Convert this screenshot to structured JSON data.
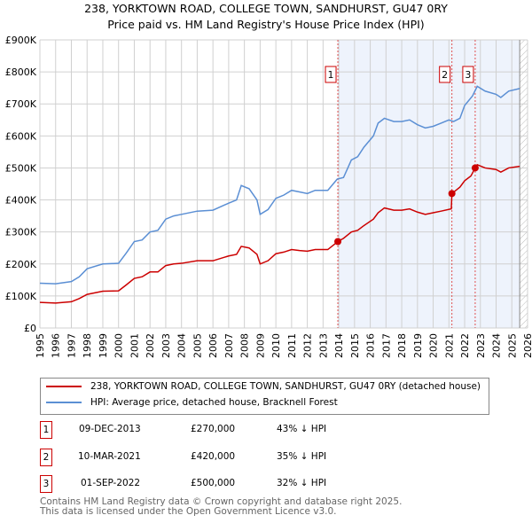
{
  "title": "238, YORKTOWN ROAD, COLLEGE TOWN, SANDHURST, GU47 0RY",
  "subtitle": "Price paid vs. HM Land Registry's House Price Index (HPI)",
  "chart_data": {
    "type": "line",
    "xlim": [
      1995,
      2026
    ],
    "ylim": [
      0,
      900000
    ],
    "x_ticks": [
      "1995",
      "1996",
      "1997",
      "1998",
      "1999",
      "2000",
      "2001",
      "2002",
      "2003",
      "2004",
      "2005",
      "2006",
      "2007",
      "2008",
      "2009",
      "2010",
      "2011",
      "2012",
      "2013",
      "2014",
      "2015",
      "2016",
      "2017",
      "2018",
      "2019",
      "2020",
      "2021",
      "2022",
      "2023",
      "2024",
      "2025",
      "2026"
    ],
    "y_ticks": [
      {
        "v": 0,
        "label": "£0"
      },
      {
        "v": 100000,
        "label": "£100K"
      },
      {
        "v": 200000,
        "label": "£200K"
      },
      {
        "v": 300000,
        "label": "£300K"
      },
      {
        "v": 400000,
        "label": "£400K"
      },
      {
        "v": 500000,
        "label": "£500K"
      },
      {
        "v": 600000,
        "label": "£600K"
      },
      {
        "v": 700000,
        "label": "£700K"
      },
      {
        "v": 800000,
        "label": "£800K"
      },
      {
        "v": 900000,
        "label": "£900K"
      }
    ],
    "grid": true,
    "shaded_from": 2013.94,
    "hatched_from": 2025.5,
    "series": [
      {
        "name": "238, YORKTOWN ROAD, COLLEGE TOWN, SANDHURST, GU47 0RY (detached house)",
        "color": "#cc0000",
        "x": [
          1995,
          1996,
          1997,
          1997.5,
          1998,
          1999,
          2000,
          2000.5,
          2001,
          2001.5,
          2002,
          2002.5,
          2003,
          2003.5,
          2004,
          2005,
          2006,
          2007,
          2007.5,
          2007.8,
          2008.3,
          2008.8,
          2009,
          2009.5,
          2010,
          2010.5,
          2011,
          2011.5,
          2012,
          2012.5,
          2013.3,
          2013.94,
          2014.3,
          2014.8,
          2015.2,
          2015.6,
          2016.2,
          2016.5,
          2016.9,
          2017.5,
          2018,
          2018.5,
          2019,
          2019.5,
          2020,
          2020.5,
          2021.15,
          2021.19,
          2021.7,
          2022,
          2022.4,
          2022.67,
          2022.8,
          2023.3,
          2024,
          2024.3,
          2024.8,
          2025.5
        ],
        "y": [
          80000,
          78000,
          82000,
          92000,
          105000,
          115000,
          116000,
          135000,
          155000,
          160000,
          175000,
          175000,
          195000,
          200000,
          202000,
          210000,
          210000,
          225000,
          230000,
          255000,
          250000,
          230000,
          200000,
          210000,
          232000,
          237000,
          245000,
          242000,
          240000,
          245000,
          245000,
          270000,
          280000,
          300000,
          305000,
          320000,
          340000,
          360000,
          375000,
          368000,
          368000,
          372000,
          362000,
          355000,
          360000,
          365000,
          372000,
          420000,
          440000,
          460000,
          475000,
          500000,
          510000,
          500000,
          495000,
          487000,
          500000,
          505000
        ]
      },
      {
        "name": "HPI: Average price, detached house, Bracknell Forest",
        "color": "#5b8fd4",
        "x": [
          1995,
          1996,
          1997,
          1997.5,
          1998,
          1999,
          2000,
          2000.5,
          2001,
          2001.5,
          2002,
          2002.5,
          2003,
          2003.5,
          2004,
          2005,
          2006,
          2007,
          2007.5,
          2007.8,
          2008.3,
          2008.8,
          2009,
          2009.5,
          2010,
          2010.5,
          2011,
          2011.5,
          2012,
          2012.5,
          2013.3,
          2013.9,
          2014.3,
          2014.8,
          2015.2,
          2015.6,
          2016.2,
          2016.5,
          2016.9,
          2017.5,
          2018,
          2018.5,
          2019,
          2019.5,
          2020,
          2020.5,
          2021,
          2021.3,
          2021.7,
          2022,
          2022.5,
          2022.8,
          2023.3,
          2024,
          2024.3,
          2024.8,
          2025.5
        ],
        "y": [
          140000,
          138000,
          145000,
          160000,
          185000,
          200000,
          202000,
          235000,
          270000,
          275000,
          300000,
          305000,
          340000,
          350000,
          355000,
          365000,
          368000,
          390000,
          400000,
          445000,
          435000,
          400000,
          355000,
          370000,
          405000,
          415000,
          430000,
          425000,
          420000,
          430000,
          430000,
          465000,
          470000,
          525000,
          535000,
          565000,
          600000,
          640000,
          655000,
          645000,
          645000,
          650000,
          635000,
          625000,
          630000,
          640000,
          650000,
          645000,
          655000,
          695000,
          725000,
          755000,
          740000,
          730000,
          720000,
          740000,
          748000
        ]
      }
    ],
    "sales": [
      {
        "label": "1",
        "x": 2013.94,
        "y": 270000,
        "date": "09-DEC-2013",
        "price": "£270,000",
        "hpi": "43% ↓ HPI"
      },
      {
        "label": "2",
        "x": 2021.19,
        "y": 420000,
        "date": "10-MAR-2021",
        "price": "£420,000",
        "hpi": "35% ↓ HPI"
      },
      {
        "label": "3",
        "x": 2022.67,
        "y": 500000,
        "date": "01-SEP-2022",
        "price": "£500,000",
        "hpi": "32% ↓ HPI"
      }
    ]
  },
  "legend": {
    "red": "238, YORKTOWN ROAD, COLLEGE TOWN, SANDHURST, GU47 0RY (detached house)",
    "blue": "HPI: Average price, detached house, Bracknell Forest"
  },
  "footer": {
    "line1": "Contains HM Land Registry data © Crown copyright and database right 2025.",
    "line2": "This data is licensed under the Open Government Licence v3.0."
  }
}
